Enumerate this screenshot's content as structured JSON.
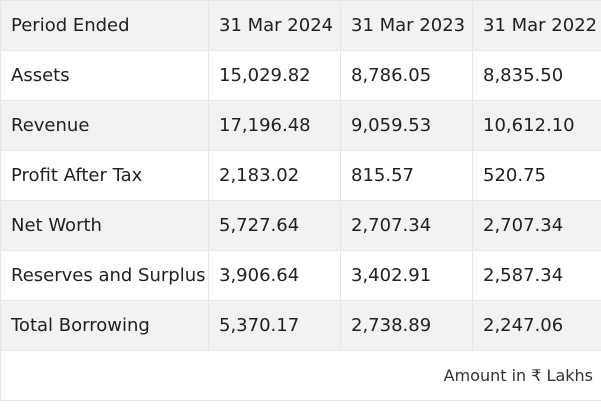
{
  "header": {
    "label": "Period Ended",
    "periods": [
      "31 Mar 2024",
      "31 Mar 2023",
      "31 Mar 2022"
    ]
  },
  "rows": [
    {
      "label": "Assets",
      "values": [
        "15,029.82",
        "8,786.05",
        "8,835.50"
      ]
    },
    {
      "label": "Revenue",
      "values": [
        "17,196.48",
        "9,059.53",
        "10,612.10"
      ]
    },
    {
      "label": "Profit After Tax",
      "values": [
        "2,183.02",
        "815.57",
        "520.75"
      ]
    },
    {
      "label": "Net Worth",
      "values": [
        "5,727.64",
        "2,707.34",
        "2,707.34"
      ]
    },
    {
      "label": "Reserves and Surplus",
      "values": [
        "3,906.64",
        "3,402.91",
        "2,587.34"
      ]
    },
    {
      "label": "Total Borrowing",
      "values": [
        "5,370.17",
        "2,738.89",
        "2,247.06"
      ]
    }
  ],
  "footer": {
    "note": "Amount in ₹ Lakhs"
  },
  "colors": {
    "shaded_row": "#f2f2f2",
    "plain_row": "#ffffff",
    "border": "#e6e6e6",
    "text": "#212121"
  }
}
